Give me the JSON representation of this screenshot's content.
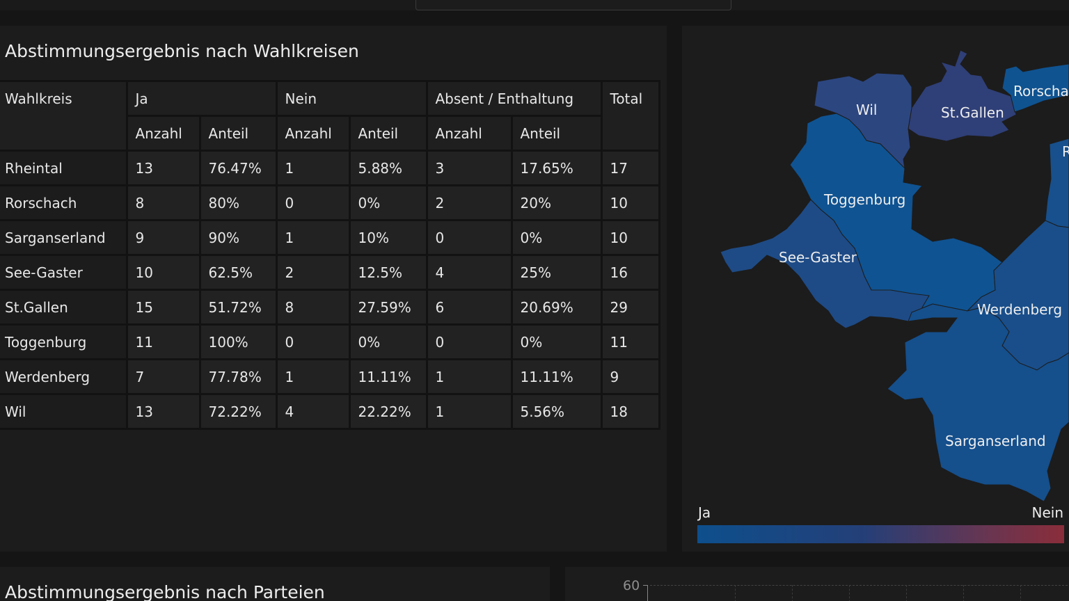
{
  "table_panel": {
    "title": "Abstimmungsergebnis nach Wahlkreisen",
    "headers": {
      "wahlkreis": "Wahlkreis",
      "ja": "Ja",
      "nein": "Nein",
      "absent": "Absent / Enthaltung",
      "total": "Total",
      "anzahl": "Anzahl",
      "anteil": "Anteil"
    },
    "rows": [
      {
        "name": "Rheintal",
        "ja_n": "13",
        "ja_p": "76.47%",
        "nein_n": "1",
        "nein_p": "5.88%",
        "abs_n": "3",
        "abs_p": "17.65%",
        "total": "17"
      },
      {
        "name": "Rorschach",
        "ja_n": "8",
        "ja_p": "80%",
        "nein_n": "0",
        "nein_p": "0%",
        "abs_n": "2",
        "abs_p": "20%",
        "total": "10"
      },
      {
        "name": "Sarganserland",
        "ja_n": "9",
        "ja_p": "90%",
        "nein_n": "1",
        "nein_p": "10%",
        "abs_n": "0",
        "abs_p": "0%",
        "total": "10"
      },
      {
        "name": "See-Gaster",
        "ja_n": "10",
        "ja_p": "62.5%",
        "nein_n": "2",
        "nein_p": "12.5%",
        "abs_n": "4",
        "abs_p": "25%",
        "total": "16"
      },
      {
        "name": "St.Gallen",
        "ja_n": "15",
        "ja_p": "51.72%",
        "nein_n": "8",
        "nein_p": "27.59%",
        "abs_n": "6",
        "abs_p": "20.69%",
        "total": "29"
      },
      {
        "name": "Toggenburg",
        "ja_n": "11",
        "ja_p": "100%",
        "nein_n": "0",
        "nein_p": "0%",
        "abs_n": "0",
        "abs_p": "0%",
        "total": "11"
      },
      {
        "name": "Werdenberg",
        "ja_n": "7",
        "ja_p": "77.78%",
        "nein_n": "1",
        "nein_p": "11.11%",
        "abs_n": "1",
        "abs_p": "11.11%",
        "total": "9"
      },
      {
        "name": "Wil",
        "ja_n": "13",
        "ja_p": "72.22%",
        "nein_n": "4",
        "nein_p": "22.22%",
        "abs_n": "1",
        "abs_p": "5.56%",
        "total": "18"
      }
    ]
  },
  "map_panel": {
    "labels": {
      "wil": "Wil",
      "stgallen": "St.Gallen",
      "rorschach": "Rorscha",
      "rheintal": "R",
      "toggenburg": "Toggenburg",
      "seegaster": "See-Gaster",
      "werdenberg": "Werdenberg",
      "sarganserland": "Sarganserland"
    },
    "legend": {
      "low": "Ja",
      "high": "Nein"
    },
    "colors": {
      "wil": "#2c4680",
      "stgallen": "#2f3f77",
      "rorschach": "#0f5391",
      "rheintal": "#17508c",
      "toggenburg": "#0f5392",
      "seegaster": "#1e4b86",
      "werdenberg": "#194e8a",
      "sarganserland": "#154f8c"
    }
  },
  "parties_panel": {
    "title": "Abstimmungsergebnis nach Parteien"
  },
  "chart_panel": {
    "y_tick": "60"
  }
}
